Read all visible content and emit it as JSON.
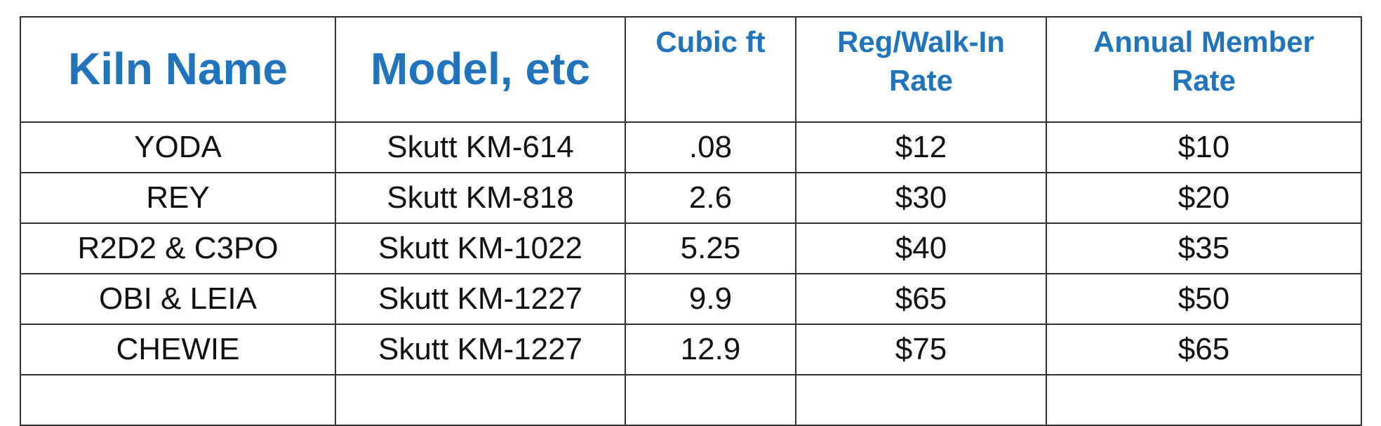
{
  "table": {
    "header": [
      "Kiln Name",
      "Model, etc",
      "Cubic ft",
      "Reg/Walk-In Rate",
      "Annual Member Rate"
    ],
    "rows": [
      [
        "YODA",
        "Skutt KM-614",
        ".08",
        "$12",
        "$10"
      ],
      [
        "REY",
        "Skutt KM-818",
        "2.6",
        "$30",
        "$20"
      ],
      [
        "R2D2 & C3PO",
        "Skutt KM-1022",
        "5.25",
        "$40",
        "$35"
      ],
      [
        "OBI & LEIA",
        "Skutt KM-1227",
        "9.9",
        "$65",
        "$50"
      ],
      [
        "CHEWIE",
        "Skutt KM-1227",
        "12.9",
        "$75",
        "$65"
      ]
    ]
  }
}
